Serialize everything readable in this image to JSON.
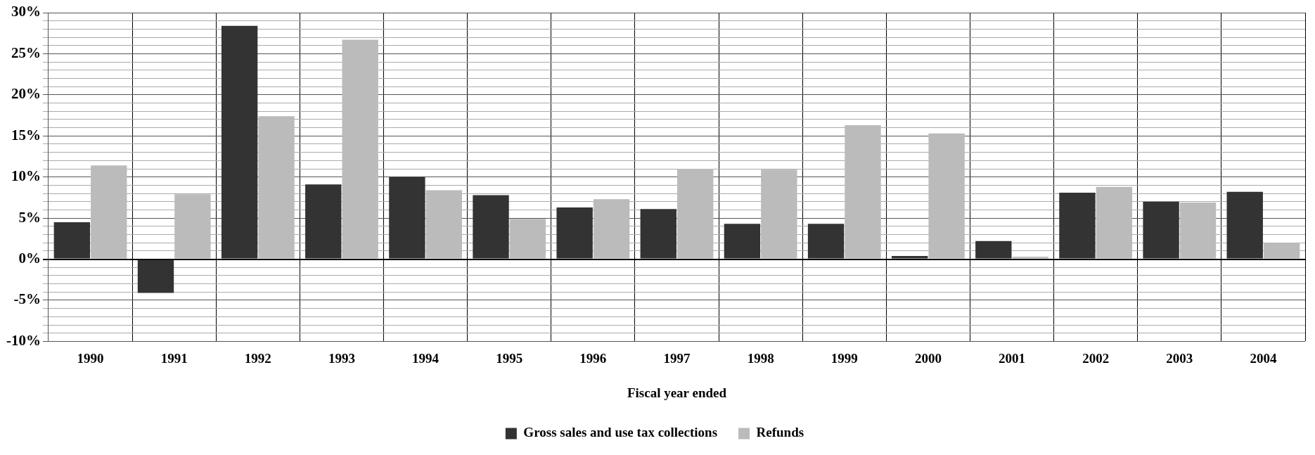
{
  "chart_data": {
    "type": "bar",
    "xlabel": "Fiscal year ended",
    "categories": [
      "1990",
      "1991",
      "1992",
      "1993",
      "1994",
      "1995",
      "1996",
      "1997",
      "1998",
      "1999",
      "2000",
      "2001",
      "2002",
      "2003",
      "2004"
    ],
    "series": [
      {
        "name": "Gross sales and use tax collections",
        "color": "#333333",
        "values": [
          4.5,
          -4.1,
          28.4,
          9.1,
          10.0,
          7.8,
          6.3,
          6.1,
          4.3,
          4.3,
          0.4,
          2.2,
          8.1,
          7.0,
          8.2
        ]
      },
      {
        "name": "Refunds",
        "color": "#bbbbbb",
        "values": [
          11.4,
          7.9,
          17.4,
          26.7,
          8.4,
          4.9,
          7.3,
          11.0,
          10.9,
          16.3,
          15.3,
          0.3,
          8.8,
          6.9,
          2.0
        ]
      }
    ],
    "ylim": [
      -10,
      30
    ],
    "yticks": [
      {
        "value": -10,
        "label": "-10%"
      },
      {
        "value": -9,
        "label": null
      },
      {
        "value": -8,
        "label": null
      },
      {
        "value": -7,
        "label": null
      },
      {
        "value": -6,
        "label": null
      },
      {
        "value": -5,
        "label": "-5%"
      },
      {
        "value": -4,
        "label": null
      },
      {
        "value": -3,
        "label": null
      },
      {
        "value": -2,
        "label": null
      },
      {
        "value": -1,
        "label": null
      },
      {
        "value": 0,
        "label": "0%"
      },
      {
        "value": 1,
        "label": null
      },
      {
        "value": 2,
        "label": null
      },
      {
        "value": 3,
        "label": null
      },
      {
        "value": 4,
        "label": null
      },
      {
        "value": 5,
        "label": "5%"
      },
      {
        "value": 6,
        "label": null
      },
      {
        "value": 7,
        "label": null
      },
      {
        "value": 8,
        "label": null
      },
      {
        "value": 9,
        "label": null
      },
      {
        "value": 10,
        "label": "10%"
      },
      {
        "value": 11,
        "label": null
      },
      {
        "value": 12,
        "label": null
      },
      {
        "value": 13,
        "label": null
      },
      {
        "value": 14,
        "label": null
      },
      {
        "value": 15,
        "label": "15%"
      },
      {
        "value": 16,
        "label": null
      },
      {
        "value": 17,
        "label": null
      },
      {
        "value": 18,
        "label": null
      },
      {
        "value": 19,
        "label": null
      },
      {
        "value": 20,
        "label": "20%"
      },
      {
        "value": 21,
        "label": null
      },
      {
        "value": 22,
        "label": null
      },
      {
        "value": 23,
        "label": null
      },
      {
        "value": 24,
        "label": null
      },
      {
        "value": 25,
        "label": "25%"
      },
      {
        "value": 26,
        "label": null
      },
      {
        "value": 27,
        "label": null
      },
      {
        "value": 28,
        "label": null
      },
      {
        "value": 29,
        "label": null
      },
      {
        "value": 30,
        "label": "30%"
      }
    ],
    "grid": true,
    "legend": "bottom"
  }
}
